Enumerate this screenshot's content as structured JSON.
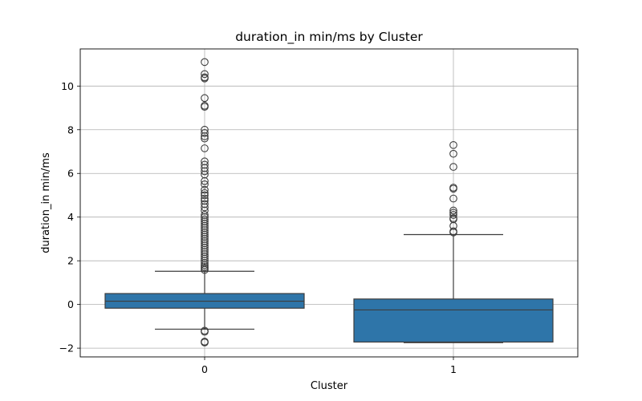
{
  "chart_data": {
    "type": "box",
    "title": "duration_in min/ms by Cluster",
    "xlabel": "Cluster",
    "ylabel": "duration_in min/ms",
    "categories": [
      "0",
      "1"
    ],
    "ylim": [
      -2.4,
      11.7
    ],
    "yticks": [
      -2,
      0,
      2,
      4,
      6,
      8,
      10
    ],
    "ytick_labels": [
      "−2",
      "0",
      "2",
      "4",
      "6",
      "8",
      "10"
    ],
    "grid": true,
    "box_color": "#2e75a9",
    "line_color": "#3d3d3d",
    "boxes": [
      {
        "category": "0",
        "whisker_low": -1.13,
        "q1": -0.17,
        "median": 0.15,
        "q3": 0.5,
        "whisker_high": 1.52,
        "outliers": [
          11.1,
          10.55,
          10.4,
          10.35,
          9.45,
          9.1,
          9.05,
          8.0,
          7.85,
          7.7,
          7.6,
          7.15,
          6.55,
          6.4,
          6.25,
          6.1,
          5.95,
          5.65,
          5.5,
          5.25,
          5.1,
          5.0,
          4.85,
          4.75,
          4.6,
          4.45,
          4.3,
          4.1,
          4.0,
          3.9,
          3.8,
          3.7,
          3.6,
          3.5,
          3.4,
          3.3,
          3.2,
          3.1,
          3.0,
          2.9,
          2.8,
          2.7,
          2.6,
          2.5,
          2.4,
          2.3,
          2.2,
          2.1,
          2.0,
          1.9,
          1.8,
          1.72,
          1.65,
          1.58,
          -1.2,
          -1.25,
          -1.7,
          -1.72,
          -1.74
        ]
      },
      {
        "category": "1",
        "whisker_low": -1.75,
        "q1": -1.72,
        "median": -0.25,
        "q3": 0.25,
        "whisker_high": 3.2,
        "outliers": [
          7.3,
          6.9,
          6.3,
          5.35,
          5.3,
          4.85,
          4.3,
          4.2,
          4.1,
          3.95,
          3.9,
          3.6,
          3.35,
          3.3
        ]
      }
    ]
  }
}
